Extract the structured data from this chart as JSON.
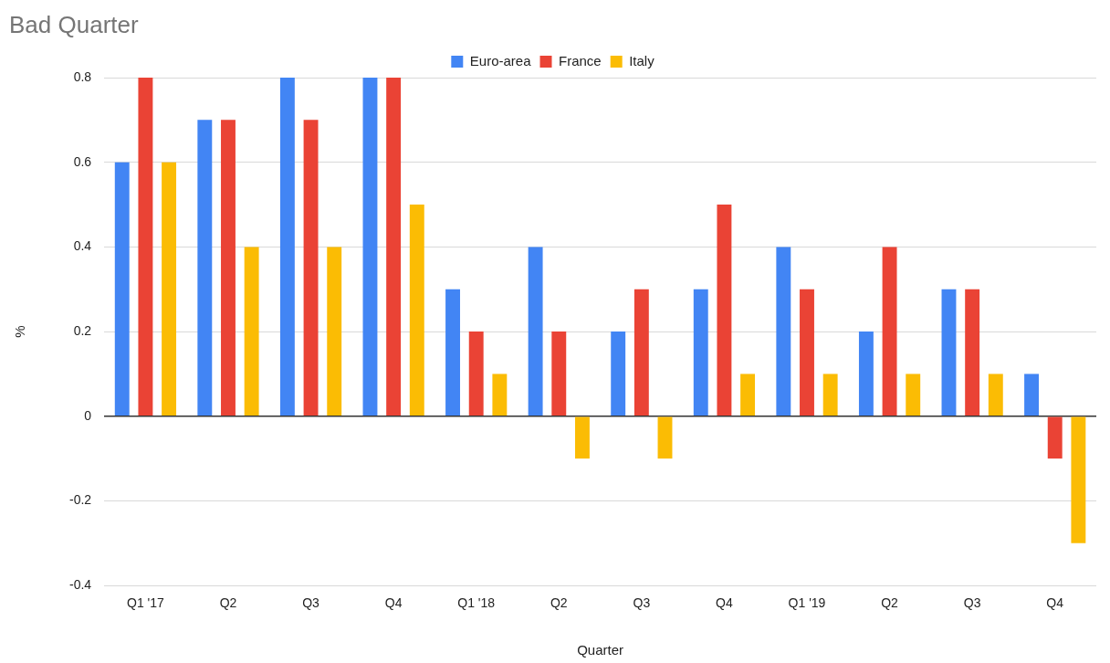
{
  "chart_data": {
    "type": "bar",
    "title": "Bad Quarter",
    "xlabel": "Quarter",
    "ylabel": "%",
    "categories": [
      "Q1 '17",
      "Q2",
      "Q3",
      "Q4",
      "Q1 '18",
      "Q2",
      "Q3",
      "Q4",
      "Q1 '19",
      "Q2",
      "Q3",
      "Q4"
    ],
    "series": [
      {
        "name": "Euro-area",
        "color": "#4285f4",
        "values": [
          0.6,
          0.7,
          0.8,
          0.8,
          0.3,
          0.4,
          0.2,
          0.3,
          0.4,
          0.2,
          0.3,
          0.1
        ]
      },
      {
        "name": "France",
        "color": "#ea4335",
        "values": [
          0.8,
          0.7,
          0.7,
          0.8,
          0.2,
          0.2,
          0.3,
          0.5,
          0.3,
          0.4,
          0.3,
          -0.1
        ]
      },
      {
        "name": "Italy",
        "color": "#fbbc04",
        "values": [
          0.6,
          0.4,
          0.4,
          0.5,
          0.1,
          -0.1,
          -0.1,
          0.1,
          0.1,
          0.1,
          0.1,
          -0.3
        ]
      }
    ],
    "ylim": [
      -0.4,
      0.8
    ],
    "yticks": [
      -0.4,
      -0.2,
      0,
      0.2,
      0.4,
      0.6,
      0.8
    ],
    "grid": "y",
    "legend": "top"
  }
}
